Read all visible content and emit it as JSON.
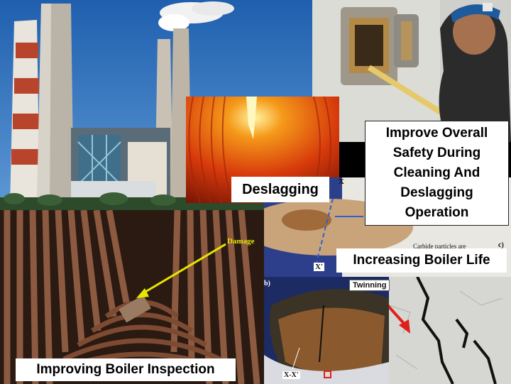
{
  "labels": {
    "deslagging": "Deslagging",
    "safety": [
      "Improve Overall",
      "Safety During",
      "Cleaning And",
      "Deslagging",
      "Operation"
    ],
    "boiler_life": "Increasing Boiler Life",
    "inspection": "Improving Boiler Inspection"
  },
  "annotations": {
    "damage": "Damage",
    "twinning": "Twinning",
    "x_prime": "X'",
    "x_x_prime": "X-X'",
    "panel_b": "b)",
    "panel_c": "c)",
    "x_mark": "X",
    "carbide": "Carbide particles are"
  },
  "colors": {
    "sky": "#2e6fb5",
    "arrow_yellow": "#e6e600",
    "arrow_red": "#e0201a",
    "furnace_orange": "#e84a10"
  }
}
